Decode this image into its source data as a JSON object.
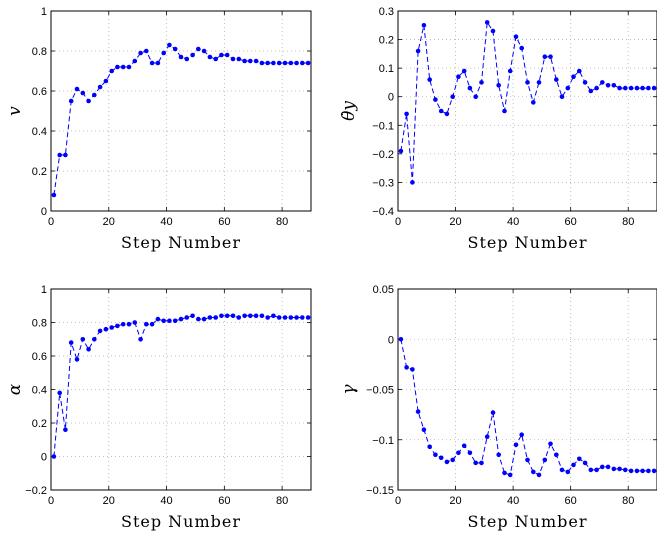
{
  "chart_data": [
    {
      "type": "line",
      "ylabel": "v",
      "xlabel": "Step Number",
      "xlim": [
        0,
        90
      ],
      "ylim": [
        0,
        1
      ],
      "xticks": [
        0,
        20,
        40,
        60,
        80
      ],
      "xtick_labels": [
        "0",
        "20",
        "40",
        "60",
        "80"
      ],
      "yticks": [
        0,
        0.2,
        0.4,
        0.6,
        0.8,
        1
      ],
      "ytick_labels": [
        "0",
        "0.2",
        "0.4",
        "0.6",
        "0.8",
        "1"
      ],
      "grid": true,
      "series": [
        {
          "color": "#0000ff",
          "x": [
            1,
            3,
            5,
            7,
            9,
            11,
            13,
            15,
            17,
            19,
            21,
            23,
            25,
            27,
            29,
            31,
            33,
            35,
            37,
            39,
            41,
            43,
            45,
            47,
            49,
            51,
            53,
            55,
            57,
            59,
            61,
            63,
            65,
            67,
            69,
            71,
            73,
            75,
            77,
            79,
            81,
            83,
            85,
            87,
            89
          ],
          "y": [
            0.08,
            0.28,
            0.28,
            0.55,
            0.61,
            0.59,
            0.55,
            0.58,
            0.62,
            0.65,
            0.7,
            0.72,
            0.72,
            0.72,
            0.75,
            0.79,
            0.8,
            0.74,
            0.74,
            0.79,
            0.83,
            0.81,
            0.77,
            0.76,
            0.78,
            0.81,
            0.8,
            0.77,
            0.76,
            0.78,
            0.78,
            0.76,
            0.76,
            0.75,
            0.75,
            0.75,
            0.74,
            0.74,
            0.74,
            0.74,
            0.74,
            0.74,
            0.74,
            0.74,
            0.74
          ]
        }
      ]
    },
    {
      "type": "line",
      "ylabel": "θ̇y",
      "xlabel": "Step Number",
      "xlim": [
        0,
        90
      ],
      "ylim": [
        -0.4,
        0.3
      ],
      "xticks": [
        0,
        20,
        40,
        60,
        80
      ],
      "xtick_labels": [
        "0",
        "20",
        "40",
        "60",
        "80"
      ],
      "yticks": [
        -0.4,
        -0.3,
        -0.2,
        -0.1,
        0,
        0.1,
        0.2,
        0.3
      ],
      "ytick_labels": [
        "−0.4",
        "−0.3",
        "−0.2",
        "−0.1",
        "0",
        "0.1",
        "0.2",
        "0.3"
      ],
      "grid": true,
      "series": [
        {
          "color": "#0000ff",
          "x": [
            1,
            3,
            5,
            7,
            9,
            11,
            13,
            15,
            17,
            19,
            21,
            23,
            25,
            27,
            29,
            31,
            33,
            35,
            37,
            39,
            41,
            43,
            45,
            47,
            49,
            51,
            53,
            55,
            57,
            59,
            61,
            63,
            65,
            67,
            69,
            71,
            73,
            75,
            77,
            79,
            81,
            83,
            85,
            87,
            89
          ],
          "y": [
            -0.19,
            -0.06,
            -0.3,
            0.16,
            0.25,
            0.06,
            -0.01,
            -0.05,
            -0.06,
            0.0,
            0.07,
            0.09,
            0.03,
            0.0,
            0.05,
            0.26,
            0.23,
            0.04,
            -0.05,
            0.09,
            0.21,
            0.17,
            0.05,
            -0.02,
            0.05,
            0.14,
            0.14,
            0.06,
            0.0,
            0.03,
            0.07,
            0.09,
            0.05,
            0.02,
            0.03,
            0.05,
            0.04,
            0.04,
            0.03,
            0.03,
            0.03,
            0.03,
            0.03,
            0.03,
            0.03
          ]
        }
      ]
    },
    {
      "type": "line",
      "ylabel": "α",
      "xlabel": "Step Number",
      "xlim": [
        0,
        90
      ],
      "ylim": [
        -0.2,
        1
      ],
      "xticks": [
        0,
        20,
        40,
        60,
        80
      ],
      "xtick_labels": [
        "0",
        "20",
        "40",
        "60",
        "80"
      ],
      "yticks": [
        -0.2,
        0,
        0.2,
        0.4,
        0.6,
        0.8,
        1
      ],
      "ytick_labels": [
        "−0.2",
        "0",
        "0.2",
        "0.4",
        "0.6",
        "0.8",
        "1"
      ],
      "grid": true,
      "series": [
        {
          "color": "#0000ff",
          "x": [
            1,
            3,
            5,
            7,
            9,
            11,
            13,
            15,
            17,
            19,
            21,
            23,
            25,
            27,
            29,
            31,
            33,
            35,
            37,
            39,
            41,
            43,
            45,
            47,
            49,
            51,
            53,
            55,
            57,
            59,
            61,
            63,
            65,
            67,
            69,
            71,
            73,
            75,
            77,
            79,
            81,
            83,
            85,
            87,
            89
          ],
          "y": [
            0.0,
            0.38,
            0.16,
            0.68,
            0.58,
            0.7,
            0.64,
            0.7,
            0.75,
            0.76,
            0.77,
            0.78,
            0.79,
            0.79,
            0.8,
            0.7,
            0.79,
            0.79,
            0.82,
            0.81,
            0.81,
            0.81,
            0.82,
            0.83,
            0.84,
            0.82,
            0.82,
            0.83,
            0.83,
            0.84,
            0.84,
            0.84,
            0.83,
            0.84,
            0.84,
            0.84,
            0.84,
            0.83,
            0.84,
            0.83,
            0.83,
            0.83,
            0.83,
            0.83,
            0.83
          ]
        }
      ]
    },
    {
      "type": "line",
      "ylabel": "γ",
      "xlabel": "Step Number",
      "xlim": [
        0,
        90
      ],
      "ylim": [
        -0.15,
        0.05
      ],
      "xticks": [
        0,
        20,
        40,
        60,
        80
      ],
      "xtick_labels": [
        "0",
        "20",
        "40",
        "60",
        "80"
      ],
      "yticks": [
        -0.15,
        -0.1,
        -0.05,
        0,
        0.05
      ],
      "ytick_labels": [
        "−0.15",
        "−0.1",
        "−0.05",
        "0",
        "0.05"
      ],
      "grid": true,
      "series": [
        {
          "color": "#0000ff",
          "x": [
            1,
            3,
            5,
            7,
            9,
            11,
            13,
            15,
            17,
            19,
            21,
            23,
            25,
            27,
            29,
            31,
            33,
            35,
            37,
            39,
            41,
            43,
            45,
            47,
            49,
            51,
            53,
            55,
            57,
            59,
            61,
            63,
            65,
            67,
            69,
            71,
            73,
            75,
            77,
            79,
            81,
            83,
            85,
            87,
            89
          ],
          "y": [
            0.0,
            -0.028,
            -0.03,
            -0.072,
            -0.09,
            -0.107,
            -0.115,
            -0.118,
            -0.122,
            -0.12,
            -0.113,
            -0.106,
            -0.113,
            -0.123,
            -0.123,
            -0.097,
            -0.073,
            -0.115,
            -0.133,
            -0.135,
            -0.105,
            -0.095,
            -0.12,
            -0.132,
            -0.135,
            -0.12,
            -0.104,
            -0.115,
            -0.13,
            -0.132,
            -0.125,
            -0.119,
            -0.123,
            -0.13,
            -0.13,
            -0.127,
            -0.127,
            -0.129,
            -0.129,
            -0.13,
            -0.131,
            -0.131,
            -0.131,
            -0.131,
            -0.131
          ]
        }
      ]
    }
  ]
}
